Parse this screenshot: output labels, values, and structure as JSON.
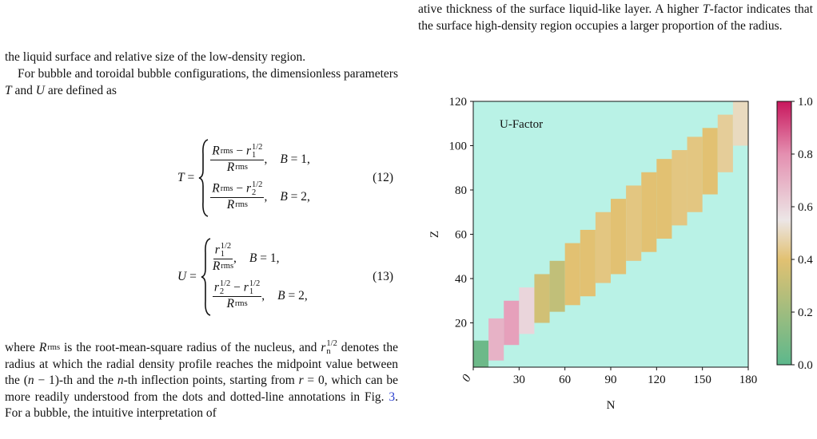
{
  "left": {
    "para1": [
      {
        "text": "the liquid surface and relative size of the low-density region."
      }
    ],
    "para2": [
      {
        "text": "For bubble and toroidal bubble configurations, the dimensionless parameters "
      },
      {
        "math": "T"
      },
      {
        "text": " and "
      },
      {
        "math": "U"
      },
      {
        "text": " are defined as"
      }
    ],
    "eq12": {
      "lhs": [
        {
          "math": "T"
        },
        {
          "text": " ="
        }
      ],
      "cases": [
        {
          "num": [
            {
              "math": "R",
              "sub": "rms"
            },
            {
              "text": " − "
            },
            {
              "math": "r",
              "sub": "1",
              "sup": "1/2"
            }
          ],
          "den": [
            {
              "math": "R",
              "sub": "rms"
            }
          ],
          "punct": ",",
          "cond": [
            {
              "math": "B"
            },
            {
              "text": " = 1,"
            }
          ]
        },
        {
          "num": [
            {
              "math": "R",
              "sub": "rms"
            },
            {
              "text": " − "
            },
            {
              "math": "r",
              "sub": "2",
              "sup": "1/2"
            }
          ],
          "den": [
            {
              "math": "R",
              "sub": "rms"
            }
          ],
          "punct": ",",
          "cond": [
            {
              "math": "B"
            },
            {
              "text": " = 2,"
            }
          ]
        }
      ],
      "number": "(12)"
    },
    "eq13": {
      "lhs": [
        {
          "math": "U"
        },
        {
          "text": " ="
        }
      ],
      "cases": [
        {
          "num": [
            {
              "math": "r",
              "sub": "1",
              "sup": "1/2"
            }
          ],
          "den": [
            {
              "math": "R",
              "sub": "rms"
            }
          ],
          "punct": ",",
          "cond": [
            {
              "math": "B"
            },
            {
              "text": " = 1,"
            }
          ]
        },
        {
          "num": [
            {
              "math": "r",
              "sub": "2",
              "sup": "1/2"
            },
            {
              "text": " − "
            },
            {
              "math": "r",
              "sub": "1",
              "sup": "1/2"
            }
          ],
          "den": [
            {
              "math": "R",
              "sub": "rms"
            }
          ],
          "punct": ",",
          "cond": [
            {
              "math": "B"
            },
            {
              "text": " = 2,"
            }
          ]
        }
      ],
      "number": "(13)"
    },
    "para3": [
      {
        "text": "where "
      },
      {
        "math": "R",
        "sub": "rms"
      },
      {
        "text": " is the root-mean-square radius of the nucleus, and "
      },
      {
        "math": "r",
        "sub": "n",
        "sup": "1/2"
      },
      {
        "text": " denotes the radius at which the radial density profile reaches the midpoint value between the ("
      },
      {
        "math": "n"
      },
      {
        "text": " − 1)-th and the "
      },
      {
        "math": "n"
      },
      {
        "text": "-th inflection points, starting from "
      },
      {
        "math": "r"
      },
      {
        "text": " = 0, which can be more readily understood from the dots and dotted-line annotations in Fig. "
      },
      {
        "link": "3"
      },
      {
        "text": ". For a bubble, the intuitive interpretation of"
      }
    ]
  },
  "right": {
    "para1": [
      {
        "text": "ative thickness of the surface liquid-like layer. A higher "
      },
      {
        "math": "T"
      },
      {
        "text": "-factor indicates that the surface high-density region occupies a larger proportion of the radius."
      }
    ]
  },
  "chart_data": {
    "type": "heatmap",
    "annotation": "U-Factor",
    "x_label": "N",
    "y_label": "Z",
    "xlim": [
      0,
      180
    ],
    "ylim": [
      0,
      120
    ],
    "xticks": [
      0,
      30,
      60,
      90,
      120,
      150,
      180
    ],
    "yticks": [
      20,
      40,
      60,
      80,
      100,
      120
    ],
    "background": "#b9f2e6",
    "clim": [
      0,
      1
    ],
    "cticks": [
      {
        "value": 0,
        "label": "0.0"
      },
      0.2,
      0.4,
      0.6,
      0.8,
      {
        "value": 1,
        "label": "1.0"
      }
    ],
    "colorscale": [
      [
        0,
        "#5cb88c"
      ],
      [
        0.4,
        "#e2c172"
      ],
      [
        0.55,
        "#ece6e6"
      ],
      [
        0.8,
        "#e48fb0"
      ],
      [
        1,
        "#c8175d"
      ]
    ],
    "cells": [
      {
        "n": [
          0,
          10
        ],
        "z": [
          0,
          12
        ],
        "value": 0.05
      },
      {
        "n": [
          10,
          20
        ],
        "z": [
          3,
          22
        ],
        "value": 0.7
      },
      {
        "n": [
          20,
          30
        ],
        "z": [
          10,
          30
        ],
        "value": 0.75
      },
      {
        "n": [
          30,
          40
        ],
        "z": [
          15,
          36
        ],
        "value": 0.6
      },
      {
        "n": [
          40,
          50
        ],
        "z": [
          20,
          42
        ],
        "value": 0.35
      },
      {
        "n": [
          50,
          60
        ],
        "z": [
          25,
          48
        ],
        "value": 0.3
      },
      {
        "n": [
          60,
          70
        ],
        "z": [
          28,
          56
        ],
        "value": 0.4
      },
      {
        "n": [
          70,
          80
        ],
        "z": [
          32,
          62
        ],
        "value": 0.4
      },
      {
        "n": [
          80,
          90
        ],
        "z": [
          38,
          70
        ],
        "value": 0.42
      },
      {
        "n": [
          90,
          100
        ],
        "z": [
          42,
          76
        ],
        "value": 0.4
      },
      {
        "n": [
          100,
          110
        ],
        "z": [
          48,
          82
        ],
        "value": 0.42
      },
      {
        "n": [
          110,
          120
        ],
        "z": [
          52,
          88
        ],
        "value": 0.4
      },
      {
        "n": [
          120,
          130
        ],
        "z": [
          58,
          94
        ],
        "value": 0.4
      },
      {
        "n": [
          130,
          140
        ],
        "z": [
          64,
          98
        ],
        "value": 0.42
      },
      {
        "n": [
          140,
          150
        ],
        "z": [
          70,
          104
        ],
        "value": 0.42
      },
      {
        "n": [
          150,
          160
        ],
        "z": [
          78,
          108
        ],
        "value": 0.4
      },
      {
        "n": [
          160,
          170
        ],
        "z": [
          88,
          114
        ],
        "value": 0.45
      },
      {
        "n": [
          170,
          180
        ],
        "z": [
          100,
          120
        ],
        "value": 0.5
      }
    ]
  }
}
